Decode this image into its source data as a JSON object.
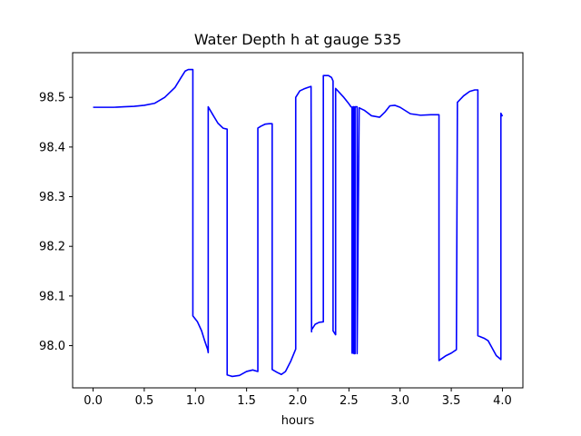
{
  "chart_data": {
    "type": "line",
    "title": "Water Depth h at gauge 535",
    "xlabel": "hours",
    "ylabel": "",
    "xlim": [
      -0.2,
      4.2
    ],
    "ylim": [
      97.915,
      98.59
    ],
    "xticks": [
      0.0,
      0.5,
      1.0,
      1.5,
      2.0,
      2.5,
      3.0,
      3.5,
      4.0
    ],
    "xtick_labels": [
      "0.0",
      "0.5",
      "1.0",
      "1.5",
      "2.0",
      "2.5",
      "3.0",
      "3.5",
      "4.0"
    ],
    "yticks": [
      98.0,
      98.1,
      98.2,
      98.3,
      98.4,
      98.5
    ],
    "ytick_labels": [
      "98.0",
      "98.1",
      "98.2",
      "98.3",
      "98.4",
      "98.5"
    ],
    "grid": false,
    "series": [
      {
        "color": "#0000ff",
        "x": [
          0.0,
          0.1,
          0.2,
          0.3,
          0.4,
          0.5,
          0.6,
          0.7,
          0.8,
          0.86,
          0.9,
          0.93,
          0.96,
          0.975,
          0.975,
          1.02,
          1.06,
          1.09,
          1.12,
          1.125,
          1.125,
          1.17,
          1.22,
          1.27,
          1.31,
          1.31,
          1.36,
          1.43,
          1.5,
          1.56,
          1.61,
          1.61,
          1.64,
          1.68,
          1.72,
          1.74,
          1.75,
          1.75,
          1.8,
          1.84,
          1.88,
          1.93,
          1.98,
          1.98,
          2.02,
          2.06,
          2.1,
          2.13,
          2.135,
          2.135,
          2.17,
          2.21,
          2.25,
          2.25,
          2.3,
          2.33,
          2.345,
          2.345,
          2.37,
          2.37,
          2.45,
          2.5,
          2.52,
          2.53,
          2.53,
          2.54,
          2.54,
          2.55,
          2.55,
          2.56,
          2.56,
          2.58,
          2.58,
          2.6,
          2.65,
          2.72,
          2.8,
          2.85,
          2.9,
          2.95,
          3.0,
          3.1,
          3.2,
          3.3,
          3.38,
          3.38,
          3.4,
          3.45,
          3.5,
          3.55,
          3.56,
          3.56,
          3.62,
          3.68,
          3.73,
          3.76,
          3.76,
          3.82,
          3.86,
          3.9,
          3.94,
          3.98,
          3.985,
          3.985,
          4.0
        ],
        "y": [
          98.48,
          98.48,
          98.48,
          98.481,
          98.482,
          98.484,
          98.488,
          98.5,
          98.52,
          98.54,
          98.553,
          98.556,
          98.556,
          98.556,
          98.06,
          98.048,
          98.03,
          98.01,
          97.992,
          97.986,
          98.481,
          98.465,
          98.448,
          98.438,
          98.436,
          97.941,
          97.938,
          97.94,
          97.948,
          97.951,
          97.948,
          98.438,
          98.442,
          98.446,
          98.447,
          98.447,
          98.447,
          97.952,
          97.946,
          97.942,
          97.948,
          97.968,
          97.993,
          98.5,
          98.513,
          98.517,
          98.52,
          98.522,
          98.028,
          98.032,
          98.043,
          98.047,
          98.048,
          98.544,
          98.544,
          98.54,
          98.533,
          98.03,
          98.022,
          98.518,
          98.5,
          98.487,
          98.481,
          98.48,
          97.985,
          97.985,
          98.481,
          98.481,
          97.984,
          97.984,
          98.481,
          98.481,
          97.984,
          98.479,
          98.474,
          98.463,
          98.46,
          98.47,
          98.483,
          98.484,
          98.48,
          98.467,
          98.464,
          98.465,
          98.465,
          97.97,
          97.973,
          97.98,
          97.985,
          97.992,
          98.487,
          98.49,
          98.503,
          98.512,
          98.515,
          98.515,
          98.02,
          98.015,
          98.01,
          97.995,
          97.98,
          97.973,
          97.972,
          98.468,
          98.462
        ]
      }
    ]
  }
}
